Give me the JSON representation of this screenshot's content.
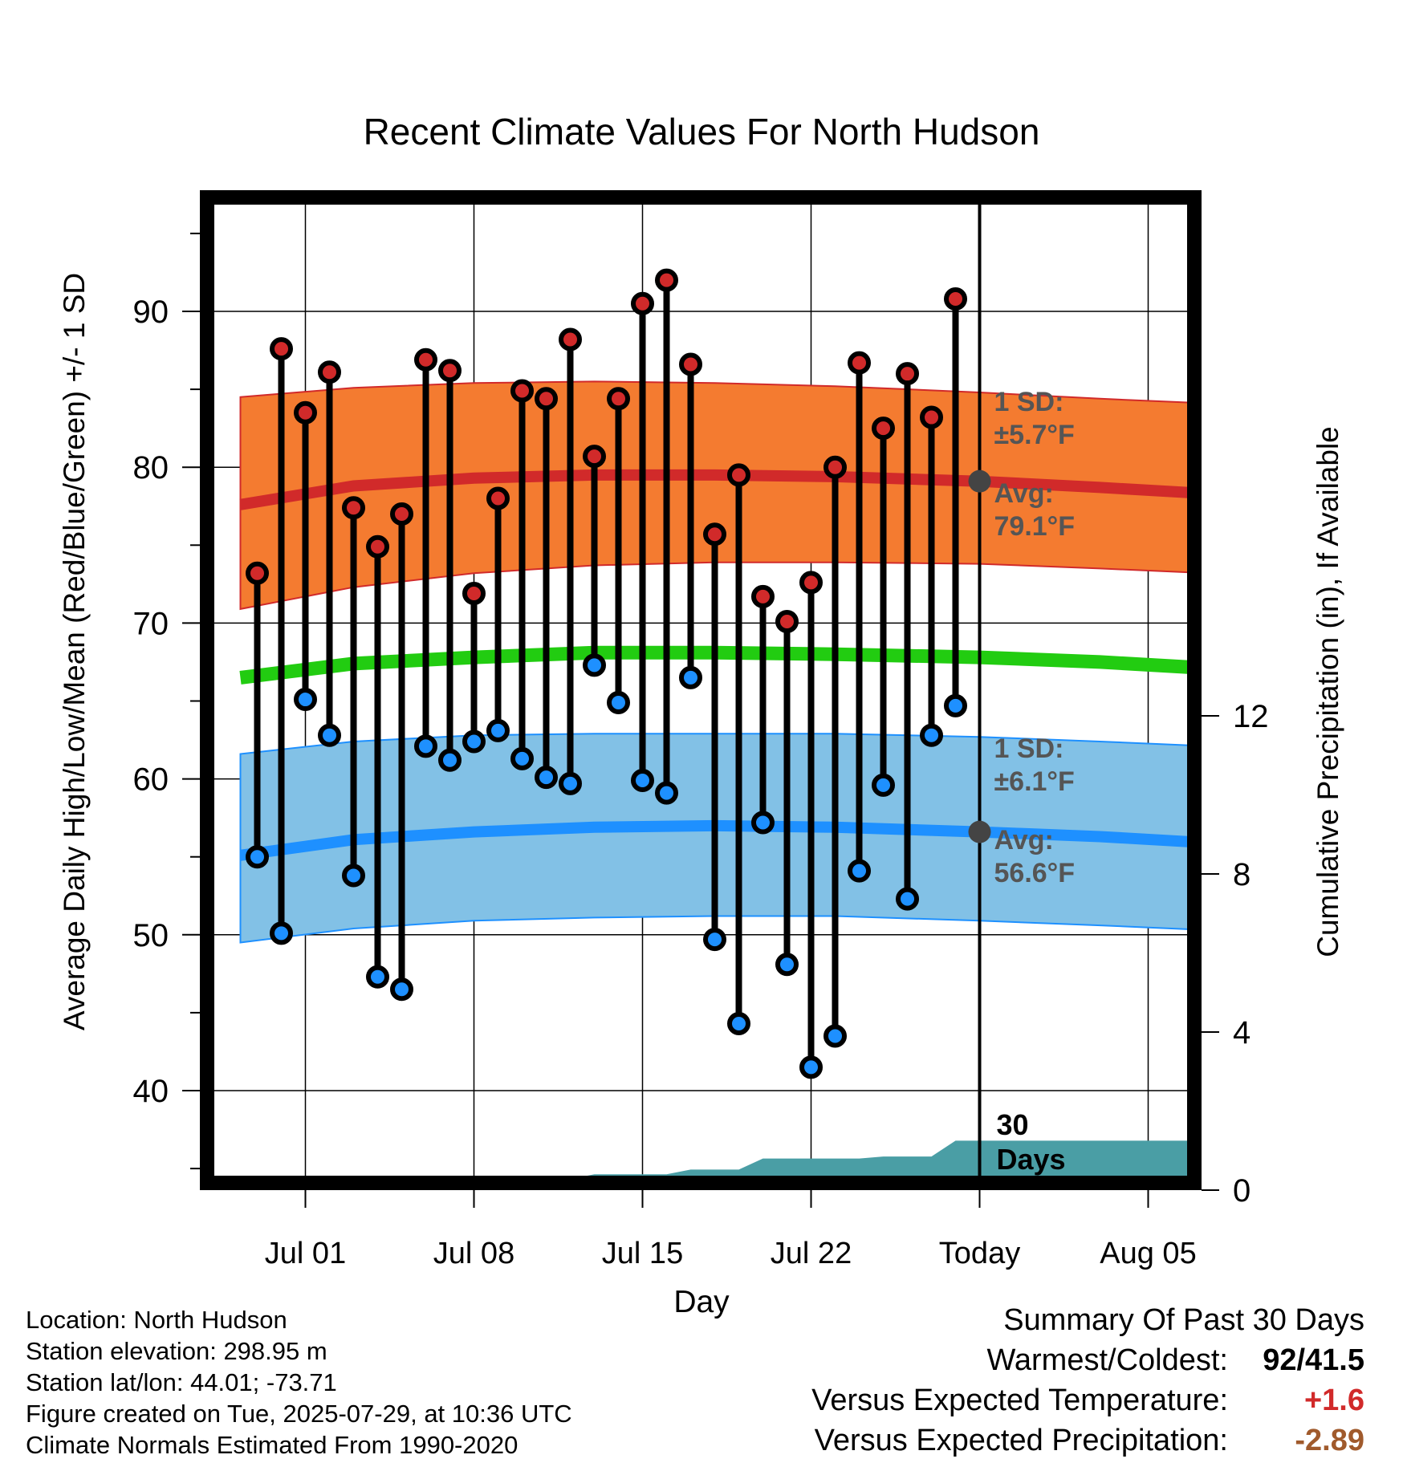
{
  "chart_data": {
    "type": "line",
    "title": "Recent Climate Values For North Hudson",
    "xlabel": "Day",
    "ylabel_left": "Average Daily High/Low/Mean (Red/Blue/Green) +/- 1 SD",
    "ylabel_right": "Cumulative Precipitation (in), If Available",
    "x_ticks": [
      {
        "label": "Jul 01",
        "day": 1
      },
      {
        "label": "Jul 08",
        "day": 8
      },
      {
        "label": "Jul 15",
        "day": 15
      },
      {
        "label": "Jul 22",
        "day": 22
      },
      {
        "label": "Today",
        "day": 29
      },
      {
        "label": "Aug 05",
        "day": 36
      }
    ],
    "xlim": [
      -1.7,
      38.5
    ],
    "ylim": [
      34,
      97.5
    ],
    "y_ticks": [
      40,
      50,
      60,
      70,
      80,
      90
    ],
    "y2lim": [
      0,
      14.7
    ],
    "y2_ticks": [
      0,
      4,
      8,
      12
    ],
    "grid": true,
    "today_day": 29,
    "colors": {
      "high": "#d12a2a",
      "low": "#1e90ff",
      "mean": "#22cc11",
      "high_band": "#f47b30",
      "low_band": "#82c1e6",
      "precip": "#4a9ea5",
      "today_dot": "#444444",
      "annotation": "#555555"
    },
    "normals": {
      "x": [
        -1.7,
        3,
        8,
        13,
        18,
        23,
        29,
        34,
        38.5
      ],
      "high_mean": [
        77.6,
        78.8,
        79.3,
        79.5,
        79.5,
        79.4,
        79.1,
        78.7,
        78.3
      ],
      "high_upper": [
        84.5,
        85.1,
        85.4,
        85.5,
        85.4,
        85.2,
        84.8,
        84.4,
        84.1
      ],
      "high_lower": [
        70.9,
        72.3,
        73.2,
        73.7,
        73.9,
        73.9,
        73.8,
        73.5,
        73.2
      ],
      "mean": [
        66.5,
        67.4,
        67.8,
        68.1,
        68.1,
        68.0,
        67.8,
        67.5,
        67.1
      ],
      "low_mean": [
        55.1,
        56.1,
        56.6,
        56.9,
        57.0,
        56.9,
        56.6,
        56.3,
        55.9
      ],
      "low_upper": [
        61.6,
        62.4,
        62.8,
        62.9,
        62.9,
        62.9,
        62.7,
        62.4,
        62.1
      ],
      "low_lower": [
        49.5,
        50.4,
        50.9,
        51.1,
        51.2,
        51.2,
        50.9,
        50.6,
        50.3
      ]
    },
    "daily": {
      "day": [
        -1,
        0,
        1,
        2,
        3,
        4,
        5,
        6,
        7,
        8,
        9,
        10,
        11,
        12,
        13,
        14,
        15,
        16,
        17,
        18,
        19,
        20,
        21,
        22,
        23,
        24,
        25,
        26,
        27,
        28
      ],
      "high": [
        73.2,
        87.6,
        83.5,
        86.1,
        77.4,
        74.9,
        77.0,
        86.9,
        86.2,
        71.9,
        78.0,
        84.9,
        84.4,
        88.2,
        80.7,
        84.4,
        90.5,
        92.0,
        86.6,
        75.7,
        79.5,
        71.7,
        70.1,
        72.6,
        80.0,
        86.7,
        82.5,
        86.0,
        83.2,
        90.8
      ],
      "low": [
        55.0,
        50.1,
        65.1,
        62.8,
        53.8,
        47.3,
        46.5,
        62.1,
        61.2,
        62.4,
        63.1,
        61.3,
        60.1,
        59.7,
        67.3,
        64.9,
        59.9,
        59.1,
        66.5,
        49.7,
        44.3,
        57.2,
        48.1,
        41.5,
        43.5,
        54.1,
        59.6,
        52.3,
        62.8,
        64.7
      ]
    },
    "precip": {
      "x": [
        -1.7,
        0,
        1,
        1.2,
        2,
        3,
        4,
        5,
        6,
        7,
        8,
        9,
        10,
        11,
        12,
        13,
        14,
        15,
        16,
        17,
        18,
        19,
        20,
        21,
        22,
        23,
        24,
        25,
        26,
        27,
        28,
        29,
        38.5
      ],
      "values": [
        0,
        0,
        0.05,
        0.1,
        0.1,
        0.2,
        0.2,
        0.2,
        0.2,
        0.25,
        0.25,
        0.27,
        0.28,
        0.28,
        0.28,
        0.4,
        0.4,
        0.4,
        0.4,
        0.52,
        0.52,
        0.52,
        0.8,
        0.8,
        0.8,
        0.8,
        0.8,
        0.85,
        0.85,
        0.85,
        1.25,
        1.25,
        1.25
      ]
    },
    "annotations": {
      "high_sd_label": "1 SD:",
      "high_sd_value": "±5.7°F",
      "high_avg_label": "Avg:",
      "high_avg_value": "79.1°F",
      "low_sd_label": "1 SD:",
      "low_sd_value": "±6.1°F",
      "low_avg_label": "Avg:",
      "low_avg_value": "56.6°F",
      "days_line1": "30",
      "days_line2": "Days"
    }
  },
  "footer": {
    "location": "Location: North Hudson",
    "elevation": "Station elevation: 298.95 m",
    "latlon": "Station lat/lon: 44.01; -73.71",
    "created": "Figure created on Tue, 2025-07-29, at 10:36 UTC",
    "normals": "Climate Normals Estimated From 1990-2020"
  },
  "summary": {
    "title": "Summary Of Past 30 Days",
    "warmest_label": "Warmest/Coldest:",
    "warmest_value": "92/41.5",
    "temp_label": "Versus Expected Temperature:",
    "temp_value": "+1.6",
    "precip_label": "Versus Expected Precipitation:",
    "precip_value": "-2.89"
  }
}
